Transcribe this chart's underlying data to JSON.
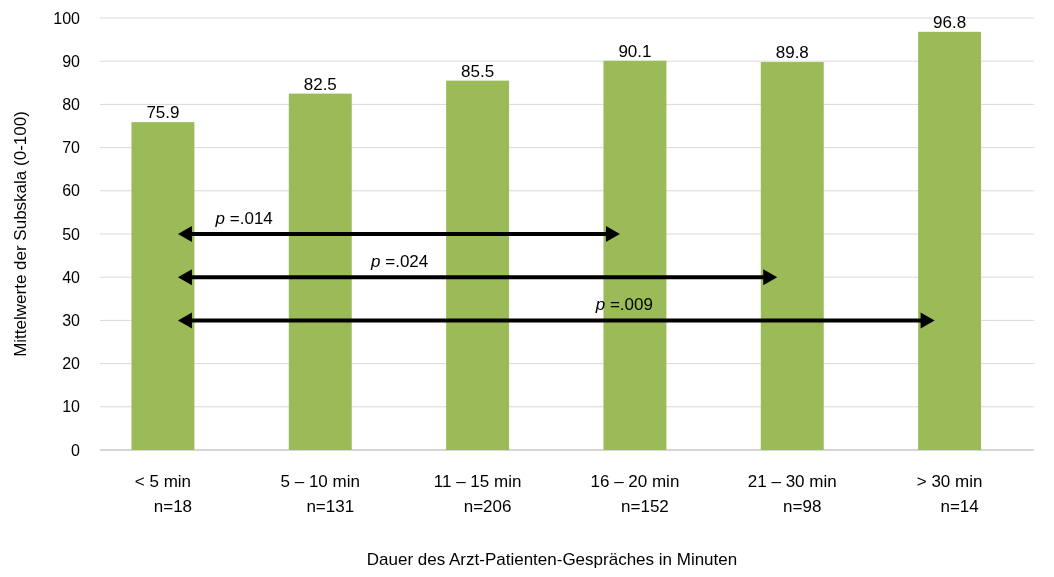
{
  "chart_data": {
    "type": "bar",
    "xlabel": "Dauer des Arzt-Patienten-Gespräches in Minuten",
    "ylabel": "Mittelwerte der Subskala (0-100)",
    "categories": [
      "< 5 min\nn=18",
      "5 – 10 min\nn=131",
      "11 – 15 min\nn=206",
      "16 – 20 min\nn=152",
      "21 – 30 min\nn=98",
      "> 30 min\nn=14"
    ],
    "values": [
      75.9,
      82.5,
      85.5,
      90.1,
      89.8,
      96.8
    ],
    "color": "#9bbb59",
    "data_labels": true,
    "ylim": [
      0,
      100
    ],
    "yticks": [
      0,
      10,
      20,
      30,
      40,
      50,
      60,
      70,
      80,
      90,
      100
    ],
    "grid": "y",
    "annotations": [
      "p =.014",
      "p =.024",
      "p =.009"
    ]
  }
}
